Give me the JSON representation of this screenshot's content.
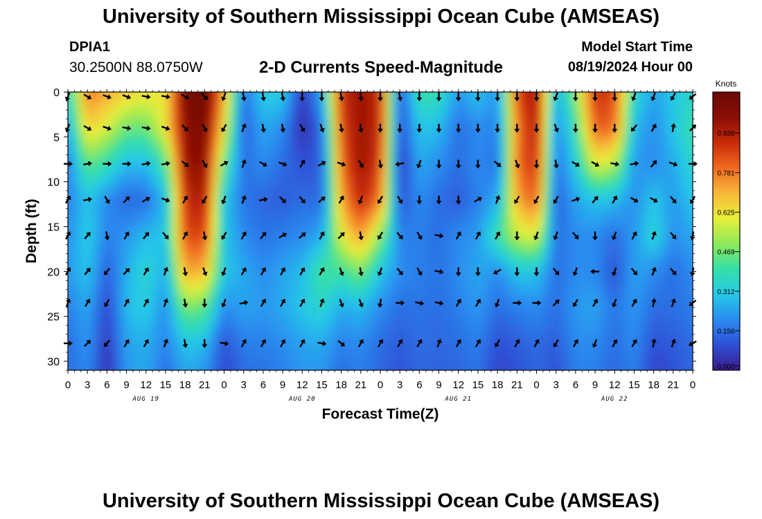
{
  "header": {
    "title": "University of Southern Mississippi Ocean Cube (AMSEAS)",
    "station_id": "DPIA1",
    "coords": "30.2500N  88.0750W",
    "chart_title": "2-D Currents Speed-Magnitude",
    "model_label": "Model Start Time",
    "model_time": "08/19/2024 Hour 00"
  },
  "footer": {
    "title": "University of Southern Mississippi Ocean Cube (AMSEAS)"
  },
  "colors": {
    "colormap": [
      "#3a1a8c",
      "#2f50d6",
      "#2a8cf0",
      "#25c8e8",
      "#35dfa8",
      "#8ee85a",
      "#e8ef3a",
      "#f8b83a",
      "#f06a20",
      "#c82a08",
      "#8a0e04",
      "#6a0806"
    ],
    "arrow": "#000000",
    "axis": "#000000"
  },
  "chart_data": {
    "type": "heatmap",
    "title": "2-D Currents Speed-Magnitude",
    "xlabel": "Forecast Time(Z)",
    "ylabel": "Depth (ft)",
    "xlim": [
      0,
      96
    ],
    "ylim": [
      0,
      31
    ],
    "x_tick_labels": [
      "0",
      "3",
      "6",
      "9",
      "12",
      "15",
      "18",
      "21",
      "0",
      "3",
      "6",
      "9",
      "12",
      "15",
      "18",
      "21",
      "0",
      "3",
      "6",
      "9",
      "12",
      "15",
      "18",
      "21",
      "0",
      "3",
      "6",
      "9",
      "12",
      "15",
      "18",
      "21",
      "0"
    ],
    "y_ticks": [
      0,
      5,
      10,
      15,
      20,
      25,
      30
    ],
    "day_labels": [
      {
        "label": "AUG 19",
        "hour": 12
      },
      {
        "label": "AUG 20",
        "hour": 36
      },
      {
        "label": "AUG 21",
        "hour": 60
      },
      {
        "label": "AUG 22",
        "hour": 84
      }
    ],
    "colorbar": {
      "units": "Knots",
      "ticks": [
        "0.938",
        "0.781",
        "0.625",
        "0.469",
        "0.312",
        "0.156",
        "0.000"
      ],
      "tick_values": [
        0.938,
        0.781,
        0.625,
        0.469,
        0.312,
        0.156,
        0.0
      ],
      "range": [
        0,
        1.1
      ]
    },
    "speed_field": {
      "description": "Current speed (knots) over forecast hour (x) and depth ft (y); approximate reading of the image",
      "hours": [
        0,
        3,
        6,
        9,
        12,
        15,
        18,
        21,
        24,
        27,
        30,
        33,
        36,
        39,
        42,
        45,
        48,
        51,
        54,
        57,
        60,
        63,
        66,
        69,
        72,
        75,
        78,
        81,
        84,
        87,
        90,
        93,
        96
      ],
      "depths": [
        0,
        4,
        8,
        12,
        16,
        20,
        24,
        28,
        31
      ],
      "values": [
        [
          0.35,
          0.78,
          0.72,
          0.66,
          0.62,
          0.62,
          1.05,
          1.1,
          0.72,
          0.15,
          0.32,
          0.32,
          0.05,
          0.25,
          0.9,
          0.98,
          0.9,
          0.1,
          0.4,
          0.38,
          0.22,
          0.3,
          0.2,
          0.85,
          0.98,
          0.24,
          0.5,
          0.9,
          0.86,
          0.35,
          0.24,
          0.3,
          0.35
        ],
        [
          0.25,
          0.66,
          0.58,
          0.46,
          0.46,
          0.62,
          1.0,
          1.05,
          0.62,
          0.12,
          0.25,
          0.2,
          0.03,
          0.15,
          0.85,
          0.98,
          0.9,
          0.08,
          0.3,
          0.28,
          0.15,
          0.2,
          0.18,
          0.78,
          0.95,
          0.18,
          0.4,
          0.82,
          0.8,
          0.28,
          0.2,
          0.3,
          0.4
        ],
        [
          0.18,
          0.45,
          0.38,
          0.28,
          0.28,
          0.42,
          0.98,
          1.0,
          0.45,
          0.15,
          0.2,
          0.15,
          0.1,
          0.12,
          0.8,
          0.98,
          0.86,
          0.05,
          0.25,
          0.2,
          0.15,
          0.2,
          0.15,
          0.8,
          0.9,
          0.15,
          0.32,
          0.6,
          0.55,
          0.22,
          0.2,
          0.25,
          0.35
        ],
        [
          0.18,
          0.3,
          0.2,
          0.14,
          0.15,
          0.28,
          0.9,
          0.95,
          0.3,
          0.16,
          0.14,
          0.12,
          0.15,
          0.14,
          0.72,
          0.92,
          0.78,
          0.1,
          0.2,
          0.15,
          0.12,
          0.18,
          0.25,
          0.72,
          0.82,
          0.12,
          0.24,
          0.3,
          0.28,
          0.2,
          0.3,
          0.22,
          0.3
        ],
        [
          0.2,
          0.32,
          0.18,
          0.22,
          0.28,
          0.3,
          0.85,
          0.86,
          0.3,
          0.2,
          0.16,
          0.18,
          0.2,
          0.25,
          0.6,
          0.74,
          0.5,
          0.18,
          0.18,
          0.15,
          0.2,
          0.22,
          0.4,
          0.56,
          0.6,
          0.15,
          0.2,
          0.2,
          0.15,
          0.22,
          0.35,
          0.2,
          0.25
        ],
        [
          0.22,
          0.3,
          0.12,
          0.26,
          0.35,
          0.25,
          0.72,
          0.7,
          0.3,
          0.25,
          0.2,
          0.24,
          0.28,
          0.42,
          0.4,
          0.48,
          0.3,
          0.2,
          0.18,
          0.16,
          0.2,
          0.25,
          0.2,
          0.3,
          0.3,
          0.15,
          0.2,
          0.2,
          0.1,
          0.24,
          0.2,
          0.15,
          0.2
        ],
        [
          0.18,
          0.25,
          0.08,
          0.28,
          0.32,
          0.2,
          0.48,
          0.45,
          0.2,
          0.24,
          0.22,
          0.25,
          0.3,
          0.35,
          0.25,
          0.28,
          0.2,
          0.15,
          0.16,
          0.15,
          0.18,
          0.22,
          0.15,
          0.18,
          0.2,
          0.15,
          0.22,
          0.24,
          0.16,
          0.22,
          0.15,
          0.15,
          0.18
        ],
        [
          0.15,
          0.22,
          0.05,
          0.24,
          0.26,
          0.18,
          0.3,
          0.28,
          0.1,
          0.18,
          0.18,
          0.2,
          0.24,
          0.25,
          0.18,
          0.2,
          0.15,
          0.12,
          0.15,
          0.14,
          0.15,
          0.18,
          0.1,
          0.12,
          0.15,
          0.12,
          0.2,
          0.2,
          0.15,
          0.2,
          0.1,
          0.12,
          0.15
        ],
        [
          0.15,
          0.2,
          0.04,
          0.22,
          0.25,
          0.15,
          0.25,
          0.22,
          0.08,
          0.15,
          0.16,
          0.18,
          0.22,
          0.22,
          0.15,
          0.18,
          0.14,
          0.1,
          0.14,
          0.13,
          0.14,
          0.16,
          0.08,
          0.1,
          0.14,
          0.1,
          0.18,
          0.18,
          0.14,
          0.18,
          0.08,
          0.1,
          0.14
        ]
      ]
    },
    "arrows": {
      "description": "Current direction arrows (degrees, 0 = north/up, clockwise) at sampled hours and depths",
      "hours": [
        0,
        3,
        6,
        9,
        12,
        15,
        18,
        21,
        24,
        27,
        30,
        33,
        36,
        39,
        42,
        45,
        48,
        51,
        54,
        57,
        60,
        63,
        66,
        69,
        72,
        75,
        78,
        81,
        84,
        87,
        90,
        93,
        96
      ],
      "depths": [
        0.5,
        4,
        8,
        12,
        16,
        20,
        23.5,
        28
      ],
      "directions": [
        [
          200,
          120,
          110,
          110,
          100,
          100,
          120,
          135,
          200,
          170,
          170,
          170,
          180,
          180,
          170,
          175,
          180,
          170,
          180,
          180,
          180,
          180,
          180,
          180,
          180,
          200,
          180,
          180,
          180,
          200,
          200,
          210,
          230
        ],
        [
          200,
          120,
          110,
          100,
          100,
          110,
          135,
          150,
          210,
          20,
          170,
          170,
          150,
          160,
          170,
          175,
          180,
          180,
          180,
          180,
          180,
          180,
          180,
          180,
          180,
          160,
          180,
          180,
          180,
          220,
          30,
          10,
          45
        ],
        [
          90,
          80,
          90,
          90,
          80,
          80,
          130,
          150,
          60,
          20,
          120,
          110,
          30,
          60,
          110,
          150,
          170,
          260,
          200,
          180,
          180,
          180,
          130,
          160,
          180,
          170,
          120,
          120,
          100,
          80,
          40,
          110,
          90
        ],
        [
          30,
          80,
          150,
          45,
          60,
          110,
          30,
          210,
          200,
          20,
          80,
          135,
          140,
          50,
          30,
          200,
          210,
          150,
          180,
          180,
          180,
          60,
          20,
          210,
          210,
          210,
          70,
          40,
          30,
          120,
          120,
          140,
          210
        ],
        [
          30,
          40,
          170,
          30,
          40,
          140,
          30,
          170,
          210,
          30,
          40,
          60,
          50,
          30,
          45,
          170,
          210,
          140,
          150,
          100,
          30,
          30,
          30,
          180,
          200,
          200,
          140,
          180,
          200,
          30,
          20,
          140,
          190
        ],
        [
          30,
          40,
          220,
          45,
          30,
          20,
          170,
          160,
          200,
          30,
          30,
          30,
          30,
          30,
          160,
          170,
          200,
          140,
          150,
          100,
          180,
          180,
          240,
          180,
          180,
          140,
          200,
          270,
          200,
          140,
          20,
          140,
          190
        ],
        [
          20,
          30,
          210,
          30,
          30,
          20,
          170,
          180,
          200,
          80,
          30,
          30,
          30,
          20,
          160,
          160,
          190,
          90,
          100,
          100,
          30,
          30,
          200,
          90,
          90,
          45,
          210,
          30,
          200,
          30,
          10,
          20,
          230
        ],
        [
          90,
          45,
          220,
          30,
          30,
          20,
          170,
          180,
          100,
          30,
          30,
          30,
          30,
          100,
          130,
          30,
          30,
          30,
          30,
          20,
          30,
          30,
          210,
          30,
          30,
          210,
          30,
          200,
          30,
          30,
          10,
          20,
          240
        ]
      ]
    }
  }
}
